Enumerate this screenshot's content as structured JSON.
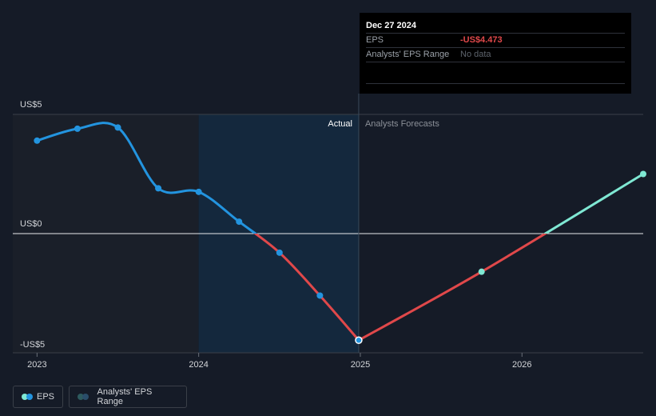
{
  "tooltip": {
    "date": "Dec 27 2024",
    "rows": [
      {
        "label": "EPS",
        "value": "-US$4.473"
      },
      {
        "label": "Analysts' EPS Range",
        "value": "No data"
      }
    ]
  },
  "region_labels": {
    "actual": "Actual",
    "forecast": "Analysts Forecasts"
  },
  "legend": {
    "eps": "EPS",
    "range": "Analysts' EPS Range"
  },
  "colors": {
    "eps_line": "#2394df",
    "negative_line": "#e0484a",
    "forecast_line": "#7fe8d3",
    "past_band": "#1a1f29",
    "actual_band": "#14283d"
  },
  "chart_data": {
    "type": "line",
    "title": "",
    "xlabel": "",
    "ylabel": "",
    "ylim": [
      -5,
      5
    ],
    "y_ticks": [
      {
        "value": 5,
        "label": "US$5"
      },
      {
        "value": 0,
        "label": "US$0"
      },
      {
        "value": -5,
        "label": "-US$5"
      }
    ],
    "x_ticks": [
      {
        "value": 2023.0,
        "label": "2023"
      },
      {
        "value": 2024.0,
        "label": "2024"
      },
      {
        "value": 2025.0,
        "label": "2025"
      },
      {
        "value": 2026.0,
        "label": "2026"
      }
    ],
    "xlim": [
      2022.85,
      2026.75
    ],
    "actual_start": 2024.0,
    "actual_end": 2024.99,
    "series": [
      {
        "kind": "actual",
        "points": [
          {
            "x": 2023.0,
            "y": 3.9,
            "marker": true
          },
          {
            "x": 2023.25,
            "y": 4.4,
            "marker": true
          },
          {
            "x": 2023.5,
            "y": 4.45,
            "marker": true
          },
          {
            "x": 2023.75,
            "y": 1.9,
            "marker": true
          },
          {
            "x": 2024.0,
            "y": 1.75,
            "marker": true
          },
          {
            "x": 2024.25,
            "y": 0.5,
            "marker": true
          },
          {
            "x": 2024.5,
            "y": -0.8,
            "marker": true
          },
          {
            "x": 2024.75,
            "y": -2.6,
            "marker": true
          },
          {
            "x": 2024.99,
            "y": -4.473,
            "marker": true,
            "highlight": true
          }
        ]
      },
      {
        "kind": "forecast",
        "points": [
          {
            "x": 2024.99,
            "y": -4.473,
            "marker": false
          },
          {
            "x": 2025.75,
            "y": -1.6,
            "marker": true
          },
          {
            "x": 2026.75,
            "y": 2.5,
            "marker": true
          }
        ]
      }
    ]
  }
}
